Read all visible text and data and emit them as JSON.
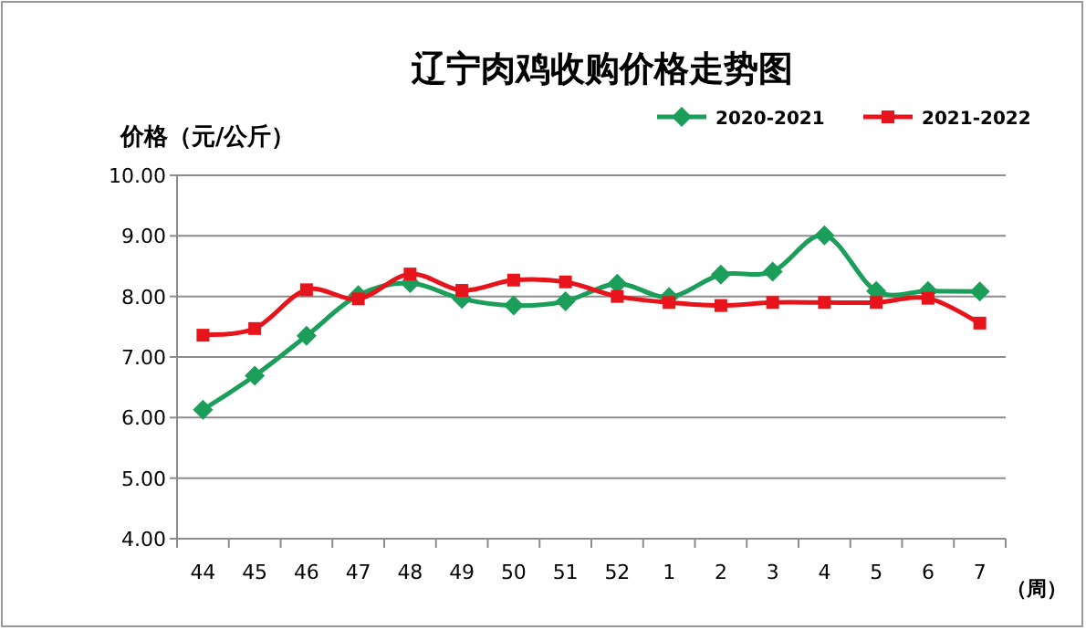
{
  "chart_data": {
    "type": "line",
    "title": "辽宁肉鸡收购价格走势图",
    "ylabel": "价格（元/公斤）",
    "categories": [
      "44",
      "45",
      "46",
      "47",
      "48",
      "49",
      "50",
      "51",
      "52",
      "1",
      "2",
      "3",
      "4",
      "5",
      "6",
      "7"
    ],
    "series": [
      {
        "name": "2020-2021",
        "color": "#1a9e5a",
        "marker": "diamond",
        "values": [
          6.13,
          6.69,
          7.35,
          8.02,
          8.22,
          7.96,
          7.85,
          7.92,
          8.21,
          7.99,
          8.36,
          8.41,
          9.01,
          8.09,
          8.09,
          8.08
        ]
      },
      {
        "name": "2021-2022",
        "color": "#e8141b",
        "marker": "square",
        "values": [
          7.36,
          7.47,
          8.11,
          7.96,
          8.37,
          8.1,
          8.27,
          8.24,
          8.0,
          7.9,
          7.85,
          7.9,
          7.9,
          7.9,
          7.97,
          7.56
        ]
      }
    ],
    "ylim": [
      4,
      10
    ],
    "yticks": [
      {
        "value": 4,
        "label": "4.00"
      },
      {
        "value": 5,
        "label": "5.00"
      },
      {
        "value": 6,
        "label": "6.00"
      },
      {
        "value": 7,
        "label": "7.00"
      },
      {
        "value": 8,
        "label": "8.00"
      },
      {
        "value": 9,
        "label": "9.00"
      },
      {
        "value": 10,
        "label": "10.00"
      }
    ],
    "grid": "y",
    "legend": "top right",
    "line_style": "solid",
    "annotations": [
      "（周）"
    ]
  }
}
